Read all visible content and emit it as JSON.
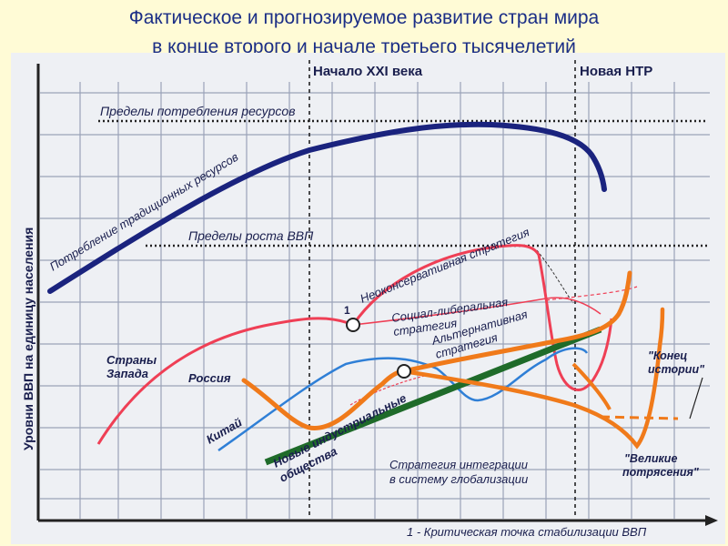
{
  "title_line1": "Фактическое и прогнозируемое развитие стран мира",
  "title_line2": "в конце второго и начале третьего тысячелетий",
  "y_axis_label": "Уровни ВВП на единицу населения",
  "eras": {
    "start_21": "Начало XXI века",
    "new_ntr": "Новая НТР"
  },
  "limits": {
    "resources": "Пределы потребления ресурсов",
    "gdp_growth": "Пределы роста ВВП"
  },
  "curves": {
    "traditional_resources": "Потребление традиционных ресурсов",
    "neoconservative": "Неоконсервативная стратегия",
    "social_liberal_1": "Социал-либеральная",
    "social_liberal_2": "стратегия",
    "alternative_1": "Альтернативная",
    "alternative_2": "стратегия",
    "new_industrial_1": "Новые индустриальные",
    "new_industrial_2": "общества",
    "integration_1": "Стратегия интеграции",
    "integration_2": "в систему глобализации"
  },
  "regions": {
    "west_1": "Страны",
    "west_2": "Запада",
    "russia": "Россия",
    "china": "Китай"
  },
  "outcomes": {
    "end_history_1": "\"Конец",
    "end_history_2": "истории\"",
    "great_shocks_1": "\"Великие",
    "great_shocks_2": "потрясения\""
  },
  "point_label": "1",
  "footnote": "1 - Критическая точка стабилизации ВВП",
  "colors": {
    "title": "#1b2e86",
    "navy": "#1a237e",
    "red": "#ef3f55",
    "orange": "#f07a1a",
    "blue": "#2f7fd6",
    "green": "#1f6b2a",
    "grid": "#9aa2b8",
    "text": "#1a1f4e"
  }
}
